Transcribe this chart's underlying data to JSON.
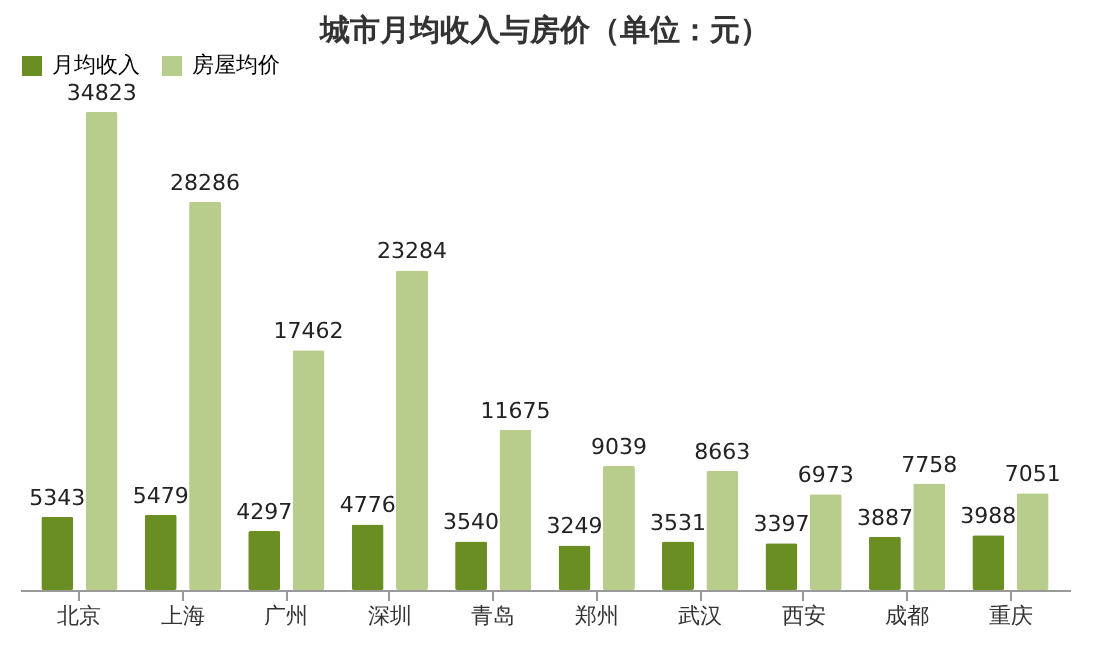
{
  "chart_data": {
    "type": "bar",
    "title": "城市月均收入与房价（单位：元）",
    "categories": [
      "北京",
      "上海",
      "广州",
      "深圳",
      "青岛",
      "郑州",
      "武汉",
      "西安",
      "成都",
      "重庆"
    ],
    "series": [
      {
        "name": "月均收入",
        "color": "#6b8e23",
        "values": [
          5343,
          5479,
          4297,
          4776,
          3540,
          3249,
          3531,
          3397,
          3887,
          3988
        ]
      },
      {
        "name": "房屋均价",
        "color": "#b8cc8c",
        "values": [
          34823,
          28286,
          17462,
          23284,
          11675,
          9039,
          8663,
          6973,
          7758,
          7051
        ]
      }
    ],
    "data_labels": true,
    "grid": false,
    "legend": "top"
  }
}
